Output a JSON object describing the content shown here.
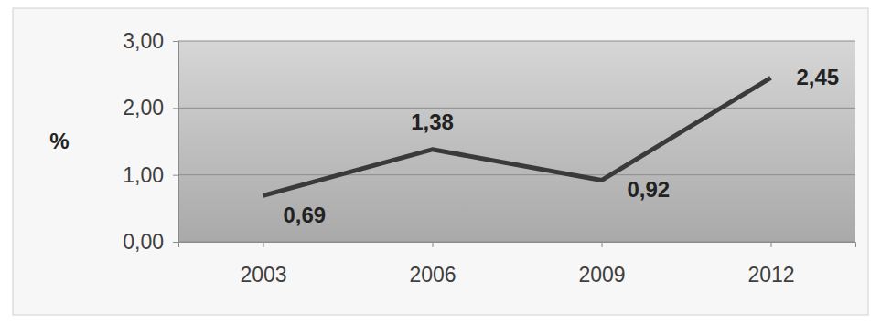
{
  "chart_data": {
    "type": "line",
    "y_label": "%",
    "categories": [
      "2003",
      "2006",
      "2009",
      "2012"
    ],
    "values": [
      0.69,
      1.38,
      0.92,
      2.45
    ],
    "value_labels": [
      "0,69",
      "1,38",
      "0,92",
      "2,45"
    ],
    "data_labels": true,
    "color": "#3a3a3a",
    "ylim": [
      0,
      3
    ],
    "yticks": [
      {
        "value": 0,
        "label": "0,00"
      },
      {
        "value": 1,
        "label": "1,00"
      },
      {
        "value": 2,
        "label": "2,00"
      },
      {
        "value": 3,
        "label": "3,00"
      }
    ],
    "grid": true
  }
}
